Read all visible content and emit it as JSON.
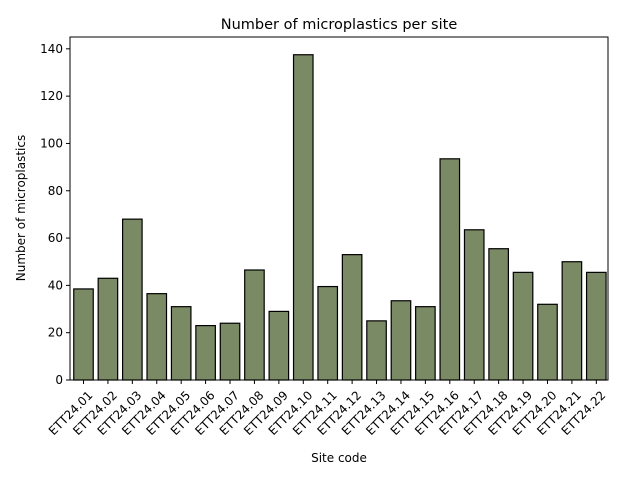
{
  "chart_data": {
    "type": "bar",
    "title": "Number of microplastics per site",
    "xlabel": "Site code",
    "ylabel": "Number of microplastics",
    "ylim": [
      0,
      145
    ],
    "yticks": [
      0,
      20,
      40,
      60,
      80,
      100,
      120,
      140
    ],
    "grid": false,
    "bar_color": "#7a8a64",
    "edge_color": "#000000",
    "categories": [
      "ETT24.01",
      "ETT24.02",
      "ETT24.03",
      "ETT24.04",
      "ETT24.05",
      "ETT24.06",
      "ETT24.07",
      "ETT24.08",
      "ETT24.09",
      "ETT24.10",
      "ETT24.11",
      "ETT24.12",
      "ETT24.13",
      "ETT24.14",
      "ETT24.15",
      "ETT24.16",
      "ETT24.17",
      "ETT24.18",
      "ETT24.19",
      "ETT24.20",
      "ETT24.21",
      "ETT24.22"
    ],
    "values": [
      38.5,
      43,
      68,
      36.5,
      31,
      23,
      24,
      46.5,
      29,
      137.5,
      39.5,
      53,
      25,
      33.5,
      31,
      93.5,
      63.5,
      55.5,
      45.5,
      32,
      50,
      45.5
    ]
  }
}
